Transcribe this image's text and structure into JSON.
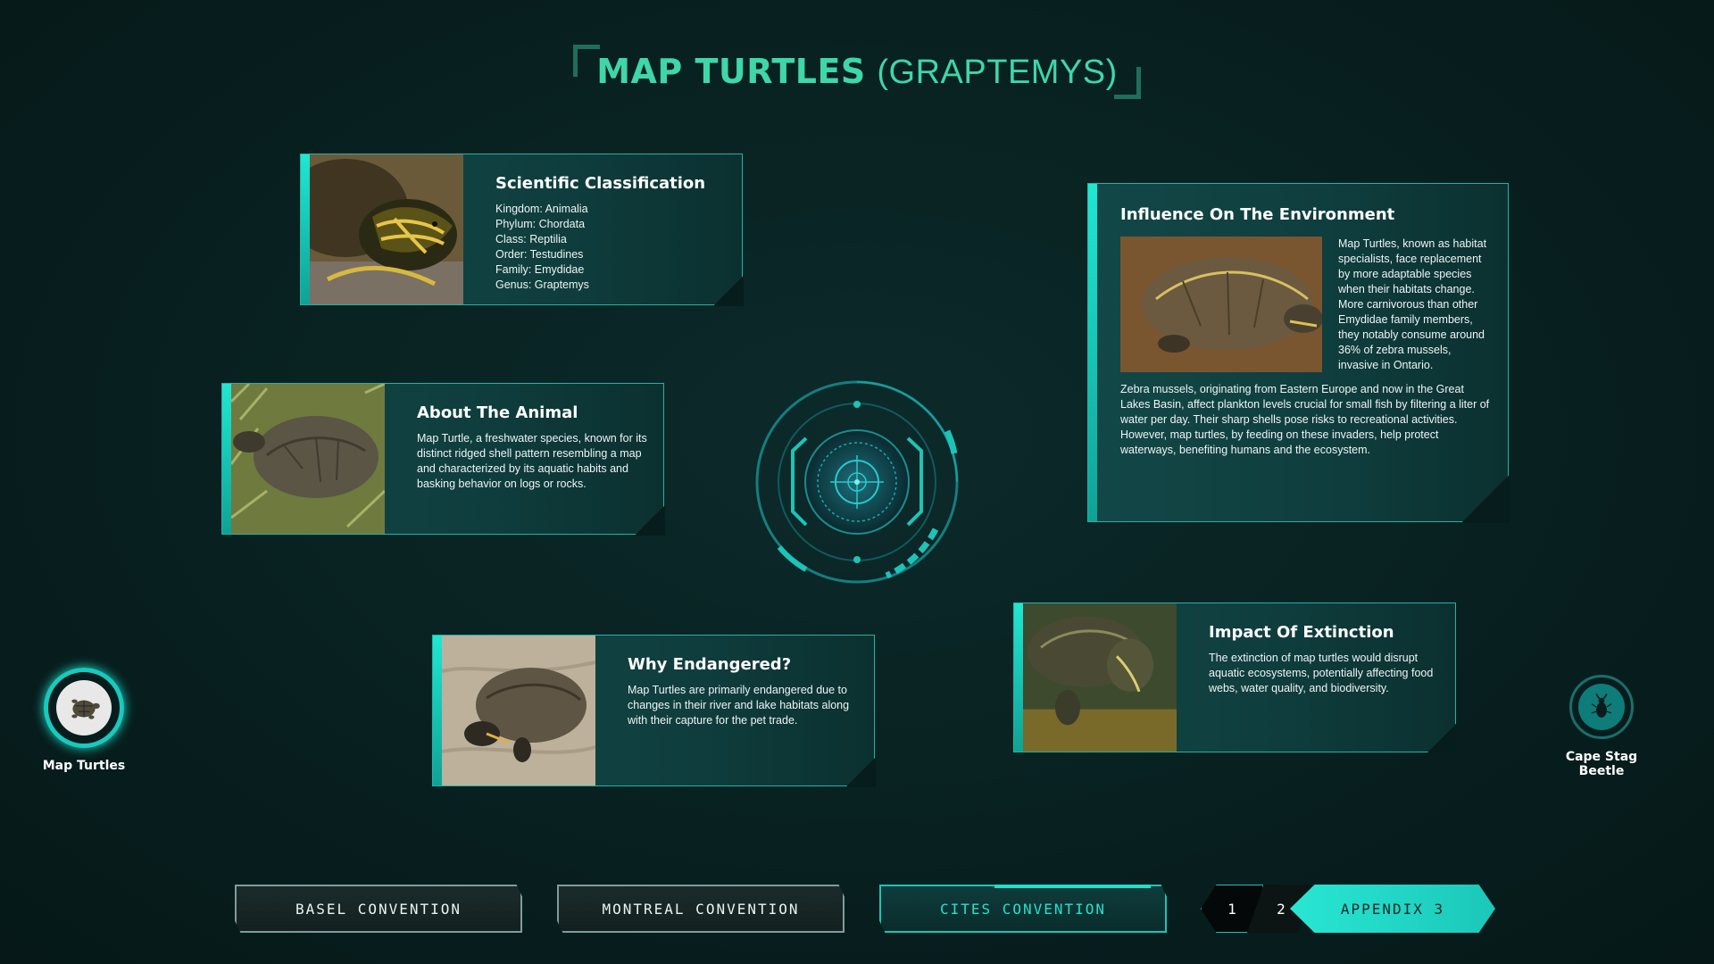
{
  "title": {
    "main": "MAP TURTLES",
    "sub": "(GRAPTEMYS)"
  },
  "cards": {
    "classification": {
      "heading": "Scientific Classification",
      "lines": [
        "Kingdom: Animalia",
        "Phylum: Chordata",
        "Class: Reptilia",
        "Order: Testudines",
        "Family: Emydidae",
        "Genus: Graptemys"
      ]
    },
    "about": {
      "heading": "About The Animal",
      "text": "Map Turtle, a freshwater species, known for its distinct ridged shell pattern resembling a map and characterized by its aquatic habits and basking behavior on logs or rocks."
    },
    "endangered": {
      "heading": "Why Endangered?",
      "text": "Map Turtles are primarily endangered due to changes in their river and lake habitats along with their capture for the pet trade."
    },
    "influence": {
      "heading": "Influence On The Environment",
      "text1": "Map Turtles, known as habitat specialists, face replacement by more adaptable species when their habitats change. More carnivorous than other Emydidae family members, they notably consume around 36% of zebra mussels, invasive in Ontario.",
      "text2": "Zebra mussels, originating from Eastern Europe and now in the Great Lakes Basin, affect plankton levels crucial for small fish by filtering a liter of water per day. Their sharp shells pose risks to recreational activities. However, map turtles, by feeding on these invaders, help protect waterways, benefiting humans and the ecosystem."
    },
    "extinction": {
      "heading": "Impact Of Extinction",
      "text": "The extinction of map turtles would disrupt aquatic ecosystems, potentially affecting food webs, water quality, and biodiversity."
    }
  },
  "side_nav": {
    "left_label": "Map Turtles",
    "right_label": "Cape Stag Beetle",
    "left_icon": "turtle-icon",
    "right_icon": "beetle-icon"
  },
  "tabs": [
    {
      "label": "BASEL CONVENTION",
      "active": false
    },
    {
      "label": "MONTREAL CONVENTION",
      "active": false
    },
    {
      "label": "CITES CONVENTION",
      "active": true
    }
  ],
  "pager": {
    "p1": "1",
    "p2": "2",
    "p3": "APPENDIX 3"
  },
  "colors": {
    "accent": "#1cc4b7",
    "title": "#3fd6a8",
    "background": "#082020"
  }
}
